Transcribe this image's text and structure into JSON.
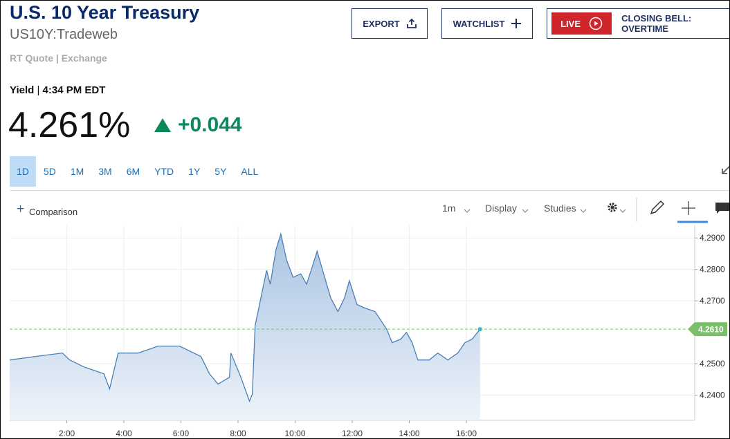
{
  "header": {
    "title": "U.S. 10 Year Treasury",
    "symbol": "US10Y:Tradeweb",
    "source": "RT Quote | Exchange",
    "buttons": [
      "EXPORT",
      "WATCHLIST"
    ],
    "live": "LIVE",
    "live_show": "CLOSING BELL: OVERTIME"
  },
  "quote": {
    "label": "Yield",
    "time": "4:34 PM EDT",
    "price": "4.261%",
    "change": "+0.044"
  },
  "ranges": [
    "1D",
    "5D",
    "1M",
    "3M",
    "6M",
    "YTD",
    "1Y",
    "5Y",
    "ALL"
  ],
  "toolbar": {
    "comparison": "Comparison",
    "interval": "1m",
    "display": "Display",
    "studies": "Studies"
  },
  "chart_data": {
    "type": "line",
    "color": "#4a7fb5",
    "x": [
      0,
      0.9,
      1.85,
      2.1,
      2.6,
      3.3,
      3.5,
      3.8,
      4.5,
      5.2,
      5.95,
      6.7,
      7.0,
      7.3,
      7.7,
      7.75,
      8.1,
      8.4,
      8.5,
      8.6,
      8.8,
      9.0,
      9.13,
      9.33,
      9.5,
      9.7,
      9.93,
      10.2,
      10.4,
      10.6,
      10.77,
      11.0,
      11.25,
      11.5,
      11.73,
      11.9,
      12.17,
      12.45,
      12.8,
      13.2,
      13.4,
      13.7,
      13.9,
      14.1,
      14.3,
      14.7,
      15.0,
      15.35,
      15.7,
      15.95,
      16.2,
      16.48
    ],
    "values": [
      4.2512,
      4.2523,
      4.2534,
      4.2512,
      4.249,
      4.2468,
      4.242,
      4.2534,
      4.2534,
      4.2556,
      4.2556,
      4.2523,
      4.2468,
      4.2435,
      4.2457,
      4.2534,
      4.2457,
      4.2381,
      4.2403,
      4.2622,
      4.2709,
      4.2797,
      4.2753,
      4.2863,
      4.2913,
      4.283,
      4.2775,
      4.2786,
      4.2753,
      4.2808,
      4.2858,
      4.2786,
      4.2709,
      4.2666,
      4.2709,
      4.2764,
      4.2688,
      4.2677,
      4.2666,
      4.2611,
      4.2567,
      4.2578,
      4.26,
      4.2567,
      4.2512,
      4.2512,
      4.2534,
      4.2512,
      4.2534,
      4.2567,
      4.2578,
      4.261
    ],
    "xlim": [
      0,
      24
    ],
    "xticks": [
      {
        "value": 2,
        "label": "2:00"
      },
      {
        "value": 4,
        "label": "4:00"
      },
      {
        "value": 6,
        "label": "6:00"
      },
      {
        "value": 8,
        "label": "8:00"
      },
      {
        "value": 10,
        "label": "10:00"
      },
      {
        "value": 12,
        "label": "12:00"
      },
      {
        "value": 14,
        "label": "14:00"
      },
      {
        "value": 16,
        "label": "16:00"
      }
    ],
    "ylim": [
      4.232,
      4.294
    ],
    "yticks": [
      {
        "value": 4.24,
        "label": "4.2400"
      },
      {
        "value": 4.25,
        "label": "4.2500"
      },
      {
        "value": 4.27,
        "label": "4.2700"
      },
      {
        "value": 4.28,
        "label": "4.2800"
      },
      {
        "value": 4.29,
        "label": "4.2900"
      }
    ],
    "reference_line": {
      "value": 4.261,
      "label": "4.2610",
      "color": "#7bbf6a"
    },
    "grid": true
  }
}
